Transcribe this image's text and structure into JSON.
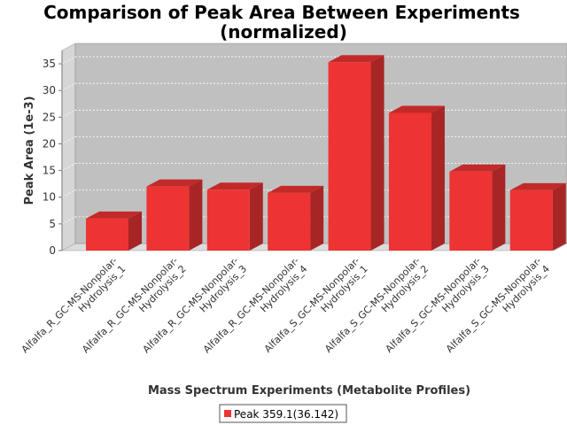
{
  "colors": {
    "bar_front": "#ee3333",
    "bar_top": "#c22a2a",
    "bar_side": "#a82525",
    "plot_bg": "#c0c0c0",
    "wall_left": "#d6d6d6",
    "floor": "#dcdcdc"
  },
  "chart_data": {
    "type": "bar",
    "title": "Comparison of Peak Area Between Experiments (normalized)",
    "title_lines": [
      "Comparison of Peak Area Between Experiments",
      "(normalized)"
    ],
    "xlabel": "Mass Spectrum Experiments (Metabolite Profiles)",
    "ylabel": "Peak Area (1e-3)",
    "ylim": [
      0,
      37.5
    ],
    "yticks": [
      0,
      5,
      10,
      15,
      20,
      25,
      30,
      35
    ],
    "grid": true,
    "legend_position": "bottom",
    "categories": [
      [
        "Alfalfa_R_GC-MS-Nonpolar-",
        "Hydrolysis_1"
      ],
      [
        "Alfalfa_R_GC-MS-Nonpolar-",
        "Hydrolysis_2"
      ],
      [
        "Alfalfa_R_GC-MS-Nonpolar-",
        "Hydrolysis_3"
      ],
      [
        "Alfalfa_R_GC-MS-Nonpolar-",
        "Hydrolysis_4"
      ],
      [
        "Alfalfa_S_GC-MS-Nonpolar-",
        "Hydrolysis_1"
      ],
      [
        "Alfalfa_S_GC-MS-Nonpolar-",
        "Hydrolysis_2"
      ],
      [
        "Alfalfa_S_GC-MS-Nonpolar-",
        "Hydrolysis_3"
      ],
      [
        "Alfalfa_S_GC-MS-Nonpolar-",
        "Hydrolysis_4"
      ]
    ],
    "series": [
      {
        "name": "Peak 359.1(36.142)",
        "values": [
          6.0,
          12.0,
          11.4,
          10.8,
          35.3,
          25.8,
          14.8,
          11.3
        ]
      }
    ]
  }
}
